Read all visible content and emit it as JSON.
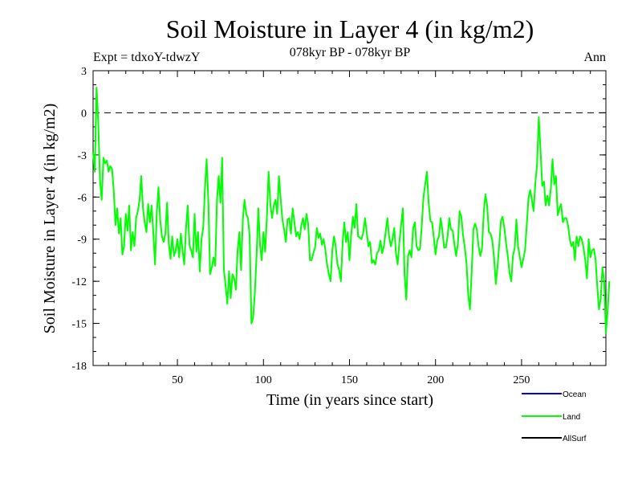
{
  "chart_data": {
    "type": "line",
    "title": "Soil Moisture in Layer 4 (in kg/m2)",
    "subtitle": "078kyr BP - 078kyr BP",
    "experiment": "Expt = tdxoY-tdwzY",
    "period": "Ann",
    "xlabel": "Time (in years since start)",
    "ylabel": "Soil Moisture in Layer 4 (in kg/m2)",
    "xlim": [
      1,
      299
    ],
    "ylim": [
      -18,
      3
    ],
    "xticks": [
      50,
      100,
      150,
      200,
      250
    ],
    "yticks": [
      3,
      0,
      -3,
      -6,
      -9,
      -12,
      -15,
      -18
    ],
    "zero_line": 0,
    "legend": [
      {
        "name": "Ocean",
        "color": "#0000ff"
      },
      {
        "name": "Land",
        "color": "#00ff00"
      },
      {
        "name": "AllSurf",
        "color": "#000000"
      }
    ],
    "series": [
      {
        "name": "Land",
        "color": "#00ff00",
        "x_start": 1,
        "x_step": 1,
        "values": [
          -2.8,
          -4.2,
          1.8,
          -0.6,
          -4.8,
          -6.2,
          -3.2,
          -3.6,
          -3.4,
          -4.2,
          -3.8,
          -4.0,
          -5.5,
          -8.0,
          -6.8,
          -8.6,
          -7.5,
          -10.1,
          -9.5,
          -7.2,
          -8.4,
          -6.6,
          -9.8,
          -8.5,
          -9.5,
          -7.5,
          -7.0,
          -6.2,
          -4.5,
          -6.8,
          -7.8,
          -8.5,
          -6.5,
          -7.8,
          -6.6,
          -8.6,
          -10.8,
          -7.2,
          -5.3,
          -7.6,
          -8.8,
          -9.2,
          -8.6,
          -6.4,
          -9.3,
          -10.4,
          -8.8,
          -10.2,
          -9.8,
          -9.0,
          -10.3,
          -8.6,
          -9.8,
          -10.8,
          -8.2,
          -6.6,
          -9.4,
          -9.8,
          -10.3,
          -7.2,
          -9.9,
          -8.5,
          -11.3,
          -9.0,
          -8.2,
          -5.4,
          -3.3,
          -6.4,
          -11.5,
          -11.0,
          -10.3,
          -10.9,
          -6.2,
          -4.5,
          -6.4,
          -3.2,
          -11.2,
          -12.3,
          -13.6,
          -11.3,
          -13.2,
          -11.5,
          -11.8,
          -12.6,
          -9.8,
          -8.5,
          -11.2,
          -7.6,
          -6.2,
          -7.2,
          -7.5,
          -8.8,
          -15.0,
          -14.6,
          -12.8,
          -10.2,
          -6.8,
          -9.4,
          -10.5,
          -8.5,
          -9.9,
          -7.4,
          -4.2,
          -6.5,
          -7.5,
          -6.6,
          -6.2,
          -7.2,
          -4.5,
          -6.1,
          -7.6,
          -8.3,
          -9.2,
          -7.6,
          -7.5,
          -8.6,
          -6.8,
          -7.8,
          -8.8,
          -8.5,
          -9.0,
          -8.0,
          -7.5,
          -8.3,
          -7.2,
          -7.9,
          -10.5,
          -10.5,
          -10.0,
          -9.6,
          -8.2,
          -8.9,
          -8.6,
          -9.4,
          -9.0,
          -9.8,
          -10.8,
          -11.5,
          -12.0,
          -9.8,
          -8.8,
          -9.5,
          -10.8,
          -11.2,
          -12.0,
          -9.3,
          -7.8,
          -9.2,
          -8.5,
          -10.5,
          -8.7,
          -7.4,
          -8.2,
          -6.5,
          -8.8,
          -8.9,
          -9.0,
          -8.5,
          -7.5,
          -8.5,
          -9.5,
          -9.2,
          -10.7,
          -10.5,
          -10.8,
          -10.0,
          -9.8,
          -9.1,
          -10.0,
          -9.5,
          -8.5,
          -7.5,
          -8.8,
          -9.5,
          -9.0,
          -8.2,
          -10.0,
          -10.8,
          -9.2,
          -8.0,
          -6.8,
          -11.5,
          -13.3,
          -10.2,
          -9.8,
          -10.3,
          -8.2,
          -7.8,
          -9.5,
          -9.8,
          -9.7,
          -8.0,
          -6.0,
          -5.1,
          -4.2,
          -6.4,
          -7.7,
          -7.8,
          -8.9,
          -10.1,
          -9.1,
          -8.8,
          -7.5,
          -8.4,
          -9.6,
          -9.6,
          -8.8,
          -7.5,
          -8.3,
          -8.4,
          -9.4,
          -10.2,
          -9.3,
          -7.0,
          -7.4,
          -8.7,
          -9.6,
          -10.7,
          -13.0,
          -14.0,
          -11.4,
          -8.3,
          -7.9,
          -8.3,
          -9.5,
          -10.2,
          -9.7,
          -7.1,
          -5.8,
          -6.6,
          -8.5,
          -8.6,
          -9.1,
          -10.3,
          -12.2,
          -11.0,
          -9.4,
          -7.7,
          -7.4,
          -8.2,
          -9.3,
          -10.2,
          -11.4,
          -12.0,
          -10.2,
          -9.6,
          -7.6,
          -9.5,
          -10.3,
          -11.0,
          -10.4,
          -9.8,
          -8.0,
          -6.1,
          -5.5,
          -6.2,
          -7.0,
          -5.0,
          -3.7,
          -0.3,
          -2.6,
          -5.2,
          -4.9,
          -6.6,
          -5.9,
          -6.6,
          -5.4,
          -3.3,
          -5.1,
          -4.5,
          -7.3,
          -6.8,
          -6.5,
          -7.8,
          -7.5,
          -7.5,
          -8.0,
          -9.0,
          -9.5,
          -9.2,
          -10.5,
          -8.8,
          -9.5,
          -8.8,
          -9.0,
          -9.6,
          -10.5,
          -11.8,
          -9.0,
          -10.3,
          -9.8,
          -9.7,
          -10.4,
          -12.4,
          -14.0,
          -13.2,
          -11.0,
          -12.0,
          -15.7,
          -14.2,
          -12.0
        ]
      }
    ]
  }
}
